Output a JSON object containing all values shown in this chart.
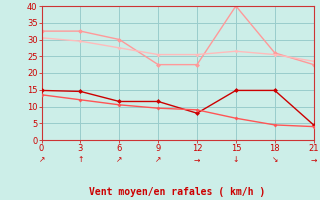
{
  "xlabel": "Vent moyen/en rafales ( km/h )",
  "x": [
    0,
    3,
    6,
    9,
    12,
    15,
    18,
    21
  ],
  "line1_y": [
    32.5,
    32.5,
    30.0,
    22.5,
    22.5,
    40.0,
    26.0,
    22.5
  ],
  "line2_y": [
    30.5,
    29.5,
    27.5,
    25.5,
    25.5,
    26.5,
    25.5,
    23.5
  ],
  "line3_y": [
    14.8,
    14.5,
    11.5,
    11.5,
    8.0,
    14.8,
    14.8,
    4.5
  ],
  "line4_y": [
    13.5,
    12.0,
    10.5,
    9.5,
    9.0,
    6.5,
    4.5,
    4.0
  ],
  "line1_color": "#ff9999",
  "line2_color": "#ffbbbb",
  "line3_color": "#cc0000",
  "line4_color": "#ff5555",
  "bg_color": "#cceee8",
  "grid_color": "#99cccc",
  "spine_color": "#cc3333",
  "text_color": "#cc0000",
  "ylim": [
    0,
    40
  ],
  "xlim": [
    0,
    21
  ],
  "yticks": [
    0,
    5,
    10,
    15,
    20,
    25,
    30,
    35,
    40
  ],
  "xticks": [
    0,
    3,
    6,
    9,
    12,
    15,
    18,
    21
  ],
  "wind_arrows": [
    "↗",
    "↑",
    "↗",
    "↗",
    "→",
    "↓",
    "↘",
    "→"
  ]
}
